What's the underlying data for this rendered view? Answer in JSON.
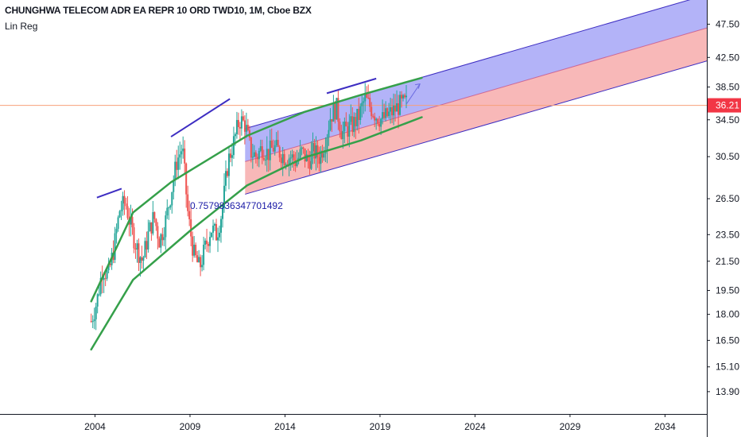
{
  "chart_data": {
    "type": "candlestick",
    "title": "CHUNGHWA TELECOM ADR EA REPR 10 ORD TWD10, 1M, Cboe BZX",
    "subtitle": "Lin Reg",
    "y_scale": "log",
    "ylim": [
      12.9,
      51.5
    ],
    "xlim": [
      1999.0,
      2036.2
    ],
    "x_ticks": [
      "2004",
      "2009",
      "2014",
      "2019",
      "2024",
      "2029",
      "2034"
    ],
    "y_ticks": [
      "47.50",
      "42.50",
      "38.50",
      "34.50",
      "30.50",
      "26.50",
      "23.50",
      "21.50",
      "19.50",
      "18.00",
      "16.50",
      "15.10",
      "13.90"
    ],
    "last_price": "36.21",
    "annotation": "0.7579836347701492",
    "colors": {
      "up": "#26a69a",
      "down": "#ef5350",
      "upper_band": "#9a9af5",
      "lower_band": "#f5a0a0",
      "price_line": "#f7a07a",
      "price_tag": "#f23645",
      "swing_line": "#3d2dc2",
      "arc": "#35a04a"
    },
    "price_path": [
      [
        2003.8,
        17.6
      ],
      [
        2004.1,
        18.8
      ],
      [
        2004.4,
        21.0
      ],
      [
        2004.7,
        20.5
      ],
      [
        2005.0,
        22.5
      ],
      [
        2005.3,
        25.5
      ],
      [
        2005.6,
        26.2
      ],
      [
        2005.9,
        24.0
      ],
      [
        2006.2,
        22.5
      ],
      [
        2006.5,
        21.5
      ],
      [
        2006.8,
        23.5
      ],
      [
        2007.1,
        25.0
      ],
      [
        2007.4,
        23.0
      ],
      [
        2007.7,
        24.5
      ],
      [
        2008.0,
        27.0
      ],
      [
        2008.3,
        30.0
      ],
      [
        2008.6,
        31.5
      ],
      [
        2008.9,
        25.0
      ],
      [
        2009.2,
        22.0
      ],
      [
        2009.5,
        21.0
      ],
      [
        2009.8,
        22.5
      ],
      [
        2010.1,
        24.0
      ],
      [
        2010.4,
        23.5
      ],
      [
        2010.7,
        25.5
      ],
      [
        2011.0,
        30.0
      ],
      [
        2011.3,
        32.0
      ],
      [
        2011.6,
        34.5
      ],
      [
        2011.9,
        34.0
      ],
      [
        2012.2,
        31.0
      ],
      [
        2012.5,
        30.5
      ],
      [
        2012.8,
        31.5
      ],
      [
        2013.1,
        30.8
      ],
      [
        2013.4,
        31.5
      ],
      [
        2013.7,
        31.0
      ],
      [
        2014.0,
        30.5
      ],
      [
        2014.3,
        30.5
      ],
      [
        2014.6,
        30.0
      ],
      [
        2014.9,
        31.0
      ],
      [
        2015.2,
        30.0
      ],
      [
        2015.5,
        31.0
      ],
      [
        2015.8,
        30.5
      ],
      [
        2016.1,
        32.0
      ],
      [
        2016.4,
        35.0
      ],
      [
        2016.7,
        36.0
      ],
      [
        2017.0,
        33.0
      ],
      [
        2017.3,
        33.5
      ],
      [
        2017.6,
        34.0
      ],
      [
        2017.9,
        35.0
      ],
      [
        2018.2,
        37.0
      ],
      [
        2018.5,
        36.0
      ],
      [
        2018.8,
        35.0
      ],
      [
        2019.1,
        34.5
      ],
      [
        2019.4,
        35.0
      ],
      [
        2019.7,
        35.5
      ],
      [
        2020.0,
        36.2
      ],
      [
        2020.4,
        36.5
      ]
    ],
    "regression": {
      "x0": 2011.9,
      "x1": 2036.2,
      "mid": [
        30.0,
        46.9
      ],
      "upper": [
        33.5,
        52.4
      ],
      "lower": [
        26.9,
        42.0
      ]
    },
    "swing_lines": [
      {
        "x": [
          2004.1,
          2005.4
        ],
        "y": [
          26.6,
          27.4
        ]
      },
      {
        "x": [
          2008.0,
          2011.1
        ],
        "y": [
          32.6,
          37.0
        ]
      },
      {
        "x": [
          2016.2,
          2018.8
        ],
        "y": [
          37.7,
          39.6
        ]
      }
    ],
    "arcs": [
      {
        "points": [
          [
            2003.8,
            18.8
          ],
          [
            2006.0,
            25.3
          ],
          [
            2008.0,
            28.0
          ],
          [
            2012.0,
            32.7
          ],
          [
            2015.0,
            35.4
          ],
          [
            2018.0,
            37.5
          ],
          [
            2021.2,
            39.7
          ]
        ]
      },
      {
        "points": [
          [
            2003.8,
            16.0
          ],
          [
            2006.0,
            20.2
          ],
          [
            2009.0,
            23.8
          ],
          [
            2012.0,
            27.7
          ],
          [
            2015.0,
            30.4
          ],
          [
            2018.0,
            32.2
          ],
          [
            2021.2,
            34.8
          ]
        ]
      }
    ],
    "projection_arrow": {
      "x": [
        2020.4,
        2021.1
      ],
      "y": [
        36.4,
        38.9
      ]
    }
  }
}
